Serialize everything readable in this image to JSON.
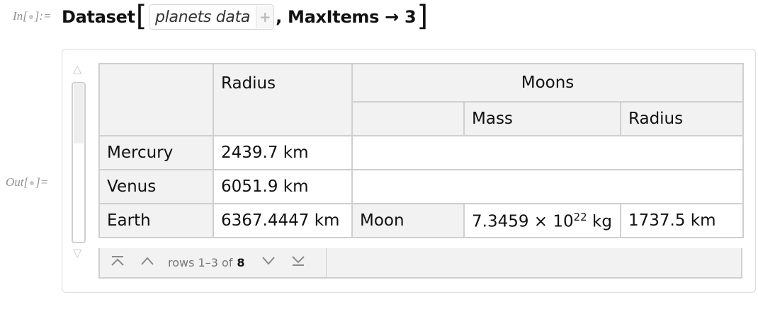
{
  "input_cell": {
    "label_prefix": "In[",
    "label_suffix": "]:=",
    "function": "Dataset",
    "open_bracket": "[",
    "chip_text": "planets data",
    "chip_plus": "+",
    "option_text": ", MaxItems → 3",
    "close_bracket": "]"
  },
  "output_cell": {
    "label_prefix": "Out[",
    "label_suffix": "]="
  },
  "scrollbar": {
    "up_arrow": "△",
    "down_arrow": "▽"
  },
  "table": {
    "col_radius": "Radius",
    "col_moons": "Moons",
    "col_moon_mass": "Mass",
    "col_moon_radius": "Radius",
    "rows": [
      {
        "name": "Mercury",
        "radius": "2439.7 km"
      },
      {
        "name": "Venus",
        "radius": "6051.9 km"
      },
      {
        "name": "Earth",
        "radius": "6367.4447 km",
        "moon": "Moon",
        "moon_mass_base": "7.3459 × 10",
        "moon_mass_exp": "22",
        "moon_mass_unit": " kg",
        "moon_radius": "1737.5 km"
      }
    ]
  },
  "footer": {
    "first_icon": "first-page-icon",
    "prev_icon": "previous-page-icon",
    "next_icon": "next-page-icon",
    "last_icon": "last-page-icon",
    "rows_text": "rows 1–3 of",
    "total": "8"
  }
}
